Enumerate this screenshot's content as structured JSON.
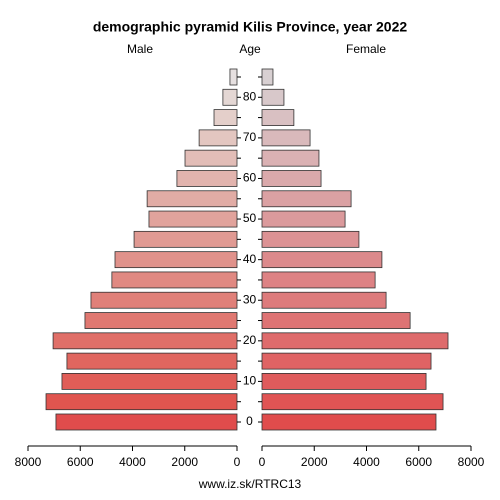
{
  "chart_data": {
    "type": "pyramid",
    "title": "demographic pyramid Kilis Province, year 2022",
    "y_label": "Age",
    "source": "www.iz.sk/RTRC13",
    "categories": [
      "0",
      null,
      "10",
      null,
      "20",
      null,
      "30",
      null,
      "40",
      null,
      "50",
      null,
      "60",
      null,
      "70",
      null,
      "80",
      null
    ],
    "series": [
      {
        "name": "Male",
        "values": [
          6930,
          7310,
          6700,
          6510,
          7040,
          5820,
          5590,
          4790,
          4670,
          3940,
          3370,
          3440,
          2300,
          1990,
          1450,
          880,
          540,
          270
        ],
        "colors": [
          "#e04c4c",
          "#e0554f",
          "#e05d57",
          "#e0665f",
          "#e06f68",
          "#e07871",
          "#e08079",
          "#e08982",
          "#e0928b",
          "#e09a93",
          "#e1a39c",
          "#e1aca5",
          "#e2b4ae",
          "#e2bdb7",
          "#e3c6c0",
          "#e4cfca",
          "#e4d7d4",
          "#e6e0e0"
        ]
      },
      {
        "name": "Female",
        "values": [
          6660,
          6930,
          6280,
          6470,
          7120,
          5670,
          4750,
          4330,
          4590,
          3710,
          3180,
          3410,
          2260,
          2180,
          1840,
          1220,
          840,
          420
        ],
        "colors": [
          "#e04c4c",
          "#e05454",
          "#df5b5c",
          "#df6364",
          "#de6b6c",
          "#de7374",
          "#dd7b7c",
          "#dd8284",
          "#dc8a8c",
          "#dc9294",
          "#db9a9c",
          "#dba1a3",
          "#daa9ab",
          "#dab1b3",
          "#d9b9bb",
          "#d9c0c2",
          "#d8c8ca",
          "#d8d0d2"
        ]
      }
    ],
    "xlim": [
      0,
      8000
    ],
    "xticks": [
      0,
      2000,
      4000,
      6000,
      8000
    ]
  }
}
